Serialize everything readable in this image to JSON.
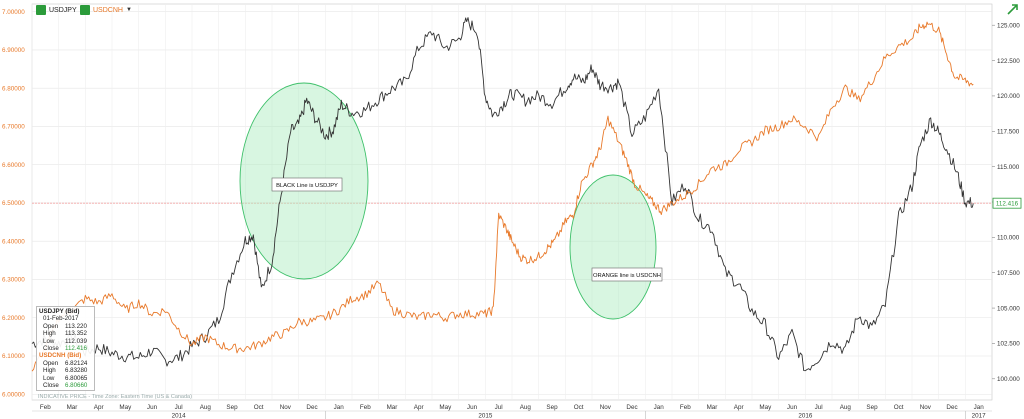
{
  "legend": [
    {
      "label": "USDJPY",
      "color": "#2b9b3a"
    },
    {
      "label": "USDCNH",
      "color": "#2b9b3a",
      "text_color": "#e8792a"
    }
  ],
  "expand_icon": "trend-arrow-icon",
  "panel": {
    "title": "USDJPY (Bid)",
    "date": "01-Feb-2017",
    "usdjpy": [
      {
        "k": "Open",
        "v": "113.220"
      },
      {
        "k": "High",
        "v": "113.352"
      },
      {
        "k": "Low",
        "v": "112.039"
      },
      {
        "k": "Close",
        "v": "112.416"
      }
    ],
    "title2": "USDCNH (Bid)",
    "usdcnh": [
      {
        "k": "Open",
        "v": "6.82124"
      },
      {
        "k": "High",
        "v": "6.83280"
      },
      {
        "k": "Low",
        "v": "6.80065"
      },
      {
        "k": "Close",
        "v": "6.80660"
      }
    ]
  },
  "indicative": "INDICATIVE PRICE - Time Zone: Eastern Time (US & Canada)",
  "chart_data": {
    "type": "line",
    "left_axis": {
      "ticks": [
        "6.00000",
        "6.10000",
        "6.20000",
        "6.30000",
        "6.40000",
        "6.50000",
        "6.60000",
        "6.70000",
        "6.80000",
        "6.90000",
        "7.00000"
      ],
      "range": [
        5.985,
        7.02
      ],
      "color": "#e8792a"
    },
    "right_axis": {
      "ticks": [
        "100.000",
        "102.500",
        "105.000",
        "107.500",
        "110.000",
        "112.500",
        "115.000",
        "117.500",
        "120.000",
        "122.500",
        "125.000"
      ],
      "range": [
        98.5,
        126.5
      ],
      "color": "#333333"
    },
    "months": [
      "Feb",
      "Mar",
      "Apr",
      "May",
      "Jun",
      "Jul",
      "Aug",
      "Sep",
      "Oct",
      "Nov",
      "Dec",
      "Jan",
      "Feb",
      "Mar",
      "Apr",
      "May",
      "Jun",
      "Jul",
      "Aug",
      "Sep",
      "Oct",
      "Nov",
      "Dec",
      "Jan",
      "Feb",
      "Mar",
      "Apr",
      "May",
      "Jun",
      "Jul",
      "Aug",
      "Sep",
      "Oct",
      "Nov",
      "Dec",
      "Jan"
    ],
    "years": [
      "2014",
      "2015",
      "2016",
      "2017"
    ],
    "series": [
      {
        "name": "USDJPY",
        "axis": "right",
        "color": "#333333",
        "x": [
          0,
          0.5,
          1,
          1.5,
          2,
          2.5,
          3,
          3.5,
          4,
          4.5,
          5,
          5.5,
          6,
          6.5,
          7,
          7.5,
          8,
          8.3,
          8.6,
          9,
          9.3,
          9.7,
          10,
          10.3,
          10.6,
          11,
          11.3,
          11.6,
          12,
          12.5,
          13,
          13.5,
          14,
          14.5,
          15,
          15.5,
          16,
          16.3,
          16.7,
          17,
          17.3,
          17.7,
          18,
          18.5,
          19,
          19.5,
          20,
          20.3,
          20.7,
          21,
          21.3,
          21.7,
          22,
          22.5,
          23,
          23.5,
          24,
          24.5,
          25,
          25.5,
          26,
          26.5,
          27,
          27.5,
          28,
          28.5,
          29,
          29.5,
          30,
          30.5,
          31,
          31.5,
          32,
          32.5,
          33,
          33.3,
          33.7,
          34,
          34.3,
          34.7,
          35,
          35.3
        ],
        "y": [
          102.5,
          102.8,
          102.5,
          103.0,
          101.9,
          102.2,
          101.8,
          101.6,
          101.5,
          102.0,
          101.3,
          101.5,
          102.3,
          103.0,
          104.2,
          107.5,
          109.8,
          110.2,
          106.3,
          108.3,
          112.5,
          117.5,
          118.0,
          119.7,
          118.5,
          117.2,
          117.6,
          119.4,
          118.8,
          119.0,
          119.8,
          120.5,
          121.0,
          123.4,
          124.5,
          123.4,
          124.0,
          125.3,
          124.6,
          120.0,
          118.6,
          119.5,
          120.2,
          119.7,
          120.0,
          119.5,
          120.6,
          121.3,
          121.0,
          122.0,
          120.8,
          120.6,
          121.0,
          117.3,
          118.5,
          120.6,
          112.5,
          113.8,
          111.3,
          110.6,
          107.5,
          106.7,
          104.8,
          103.8,
          101.5,
          103.2,
          100.6,
          101.5,
          102.7,
          102.0,
          104.5,
          103.6,
          105.2,
          111.4,
          113.6,
          116.5,
          118.3,
          117.4,
          116.3,
          114.5,
          112.5,
          112.4
        ]
      },
      {
        "name": "USDCNH",
        "axis": "left",
        "color": "#e8792a",
        "x": [
          0,
          0.5,
          1,
          1.5,
          2,
          2.5,
          3,
          3.5,
          4,
          4.5,
          5,
          5.5,
          6,
          6.5,
          7,
          7.5,
          8,
          8.5,
          9,
          9.5,
          10,
          10.5,
          11,
          11.5,
          12,
          12.5,
          13,
          13.5,
          14,
          14.5,
          15,
          15.5,
          16,
          16.5,
          17,
          17.3,
          17.5,
          17.8,
          18,
          18.3,
          18.6,
          19,
          19.3,
          19.6,
          20,
          20.3,
          20.6,
          21,
          21.3,
          21.6,
          22,
          22.3,
          22.6,
          23,
          23.3,
          23.6,
          24,
          24.5,
          25,
          25.5,
          26,
          26.5,
          27,
          27.5,
          28,
          28.5,
          29,
          29.5,
          30,
          30.5,
          31,
          31.5,
          32,
          32.5,
          33,
          33.3,
          33.6,
          34,
          34.3,
          34.6,
          35,
          35.3
        ],
        "y": [
          6.06,
          6.12,
          6.2,
          6.22,
          6.25,
          6.24,
          6.26,
          6.22,
          6.24,
          6.21,
          6.22,
          6.17,
          6.13,
          6.15,
          6.13,
          6.12,
          6.12,
          6.13,
          6.15,
          6.16,
          6.19,
          6.19,
          6.2,
          6.22,
          6.25,
          6.26,
          6.29,
          6.22,
          6.21,
          6.2,
          6.21,
          6.2,
          6.21,
          6.21,
          6.21,
          6.22,
          6.47,
          6.43,
          6.4,
          6.36,
          6.35,
          6.36,
          6.38,
          6.4,
          6.45,
          6.47,
          6.55,
          6.6,
          6.64,
          6.72,
          6.66,
          6.61,
          6.55,
          6.52,
          6.5,
          6.48,
          6.5,
          6.52,
          6.55,
          6.59,
          6.6,
          6.64,
          6.66,
          6.69,
          6.7,
          6.72,
          6.7,
          6.67,
          6.75,
          6.8,
          6.77,
          6.82,
          6.88,
          6.91,
          6.93,
          6.96,
          6.97,
          6.95,
          6.89,
          6.83,
          6.82,
          6.81
        ]
      }
    ],
    "current_marker": {
      "label": "112.416",
      "value": 112.416,
      "color": "#2b9b3a"
    },
    "annotations": [
      {
        "text": "BLACK Line is USDJPY"
      },
      {
        "text": "ORANGE line is USDCNH"
      }
    ]
  }
}
